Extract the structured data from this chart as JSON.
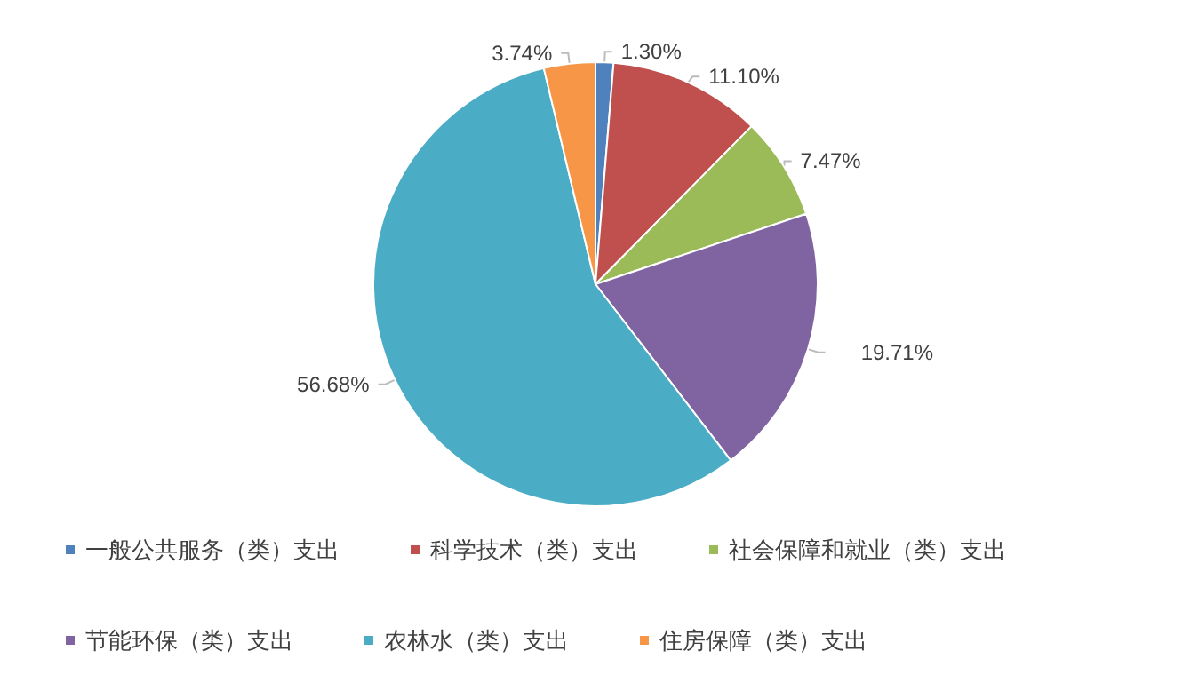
{
  "chart_data": {
    "type": "pie",
    "categories": [
      "一般公共服务（类）支出",
      "科学技术（类）支出",
      "社会保障和就业（类）支出",
      "节能环保（类）支出",
      "农林水（类）支出",
      "住房保障（类）支出"
    ],
    "values": [
      1.3,
      11.1,
      7.47,
      19.71,
      56.68,
      3.74
    ],
    "value_labels": [
      "1.30%",
      "11.10%",
      "7.47%",
      "19.71%",
      "56.68%",
      "3.74%"
    ],
    "colors": [
      "#4f81bd",
      "#c0504d",
      "#9bbb59",
      "#8064a2",
      "#4bacc6",
      "#f79646"
    ],
    "legend": "bottom"
  }
}
